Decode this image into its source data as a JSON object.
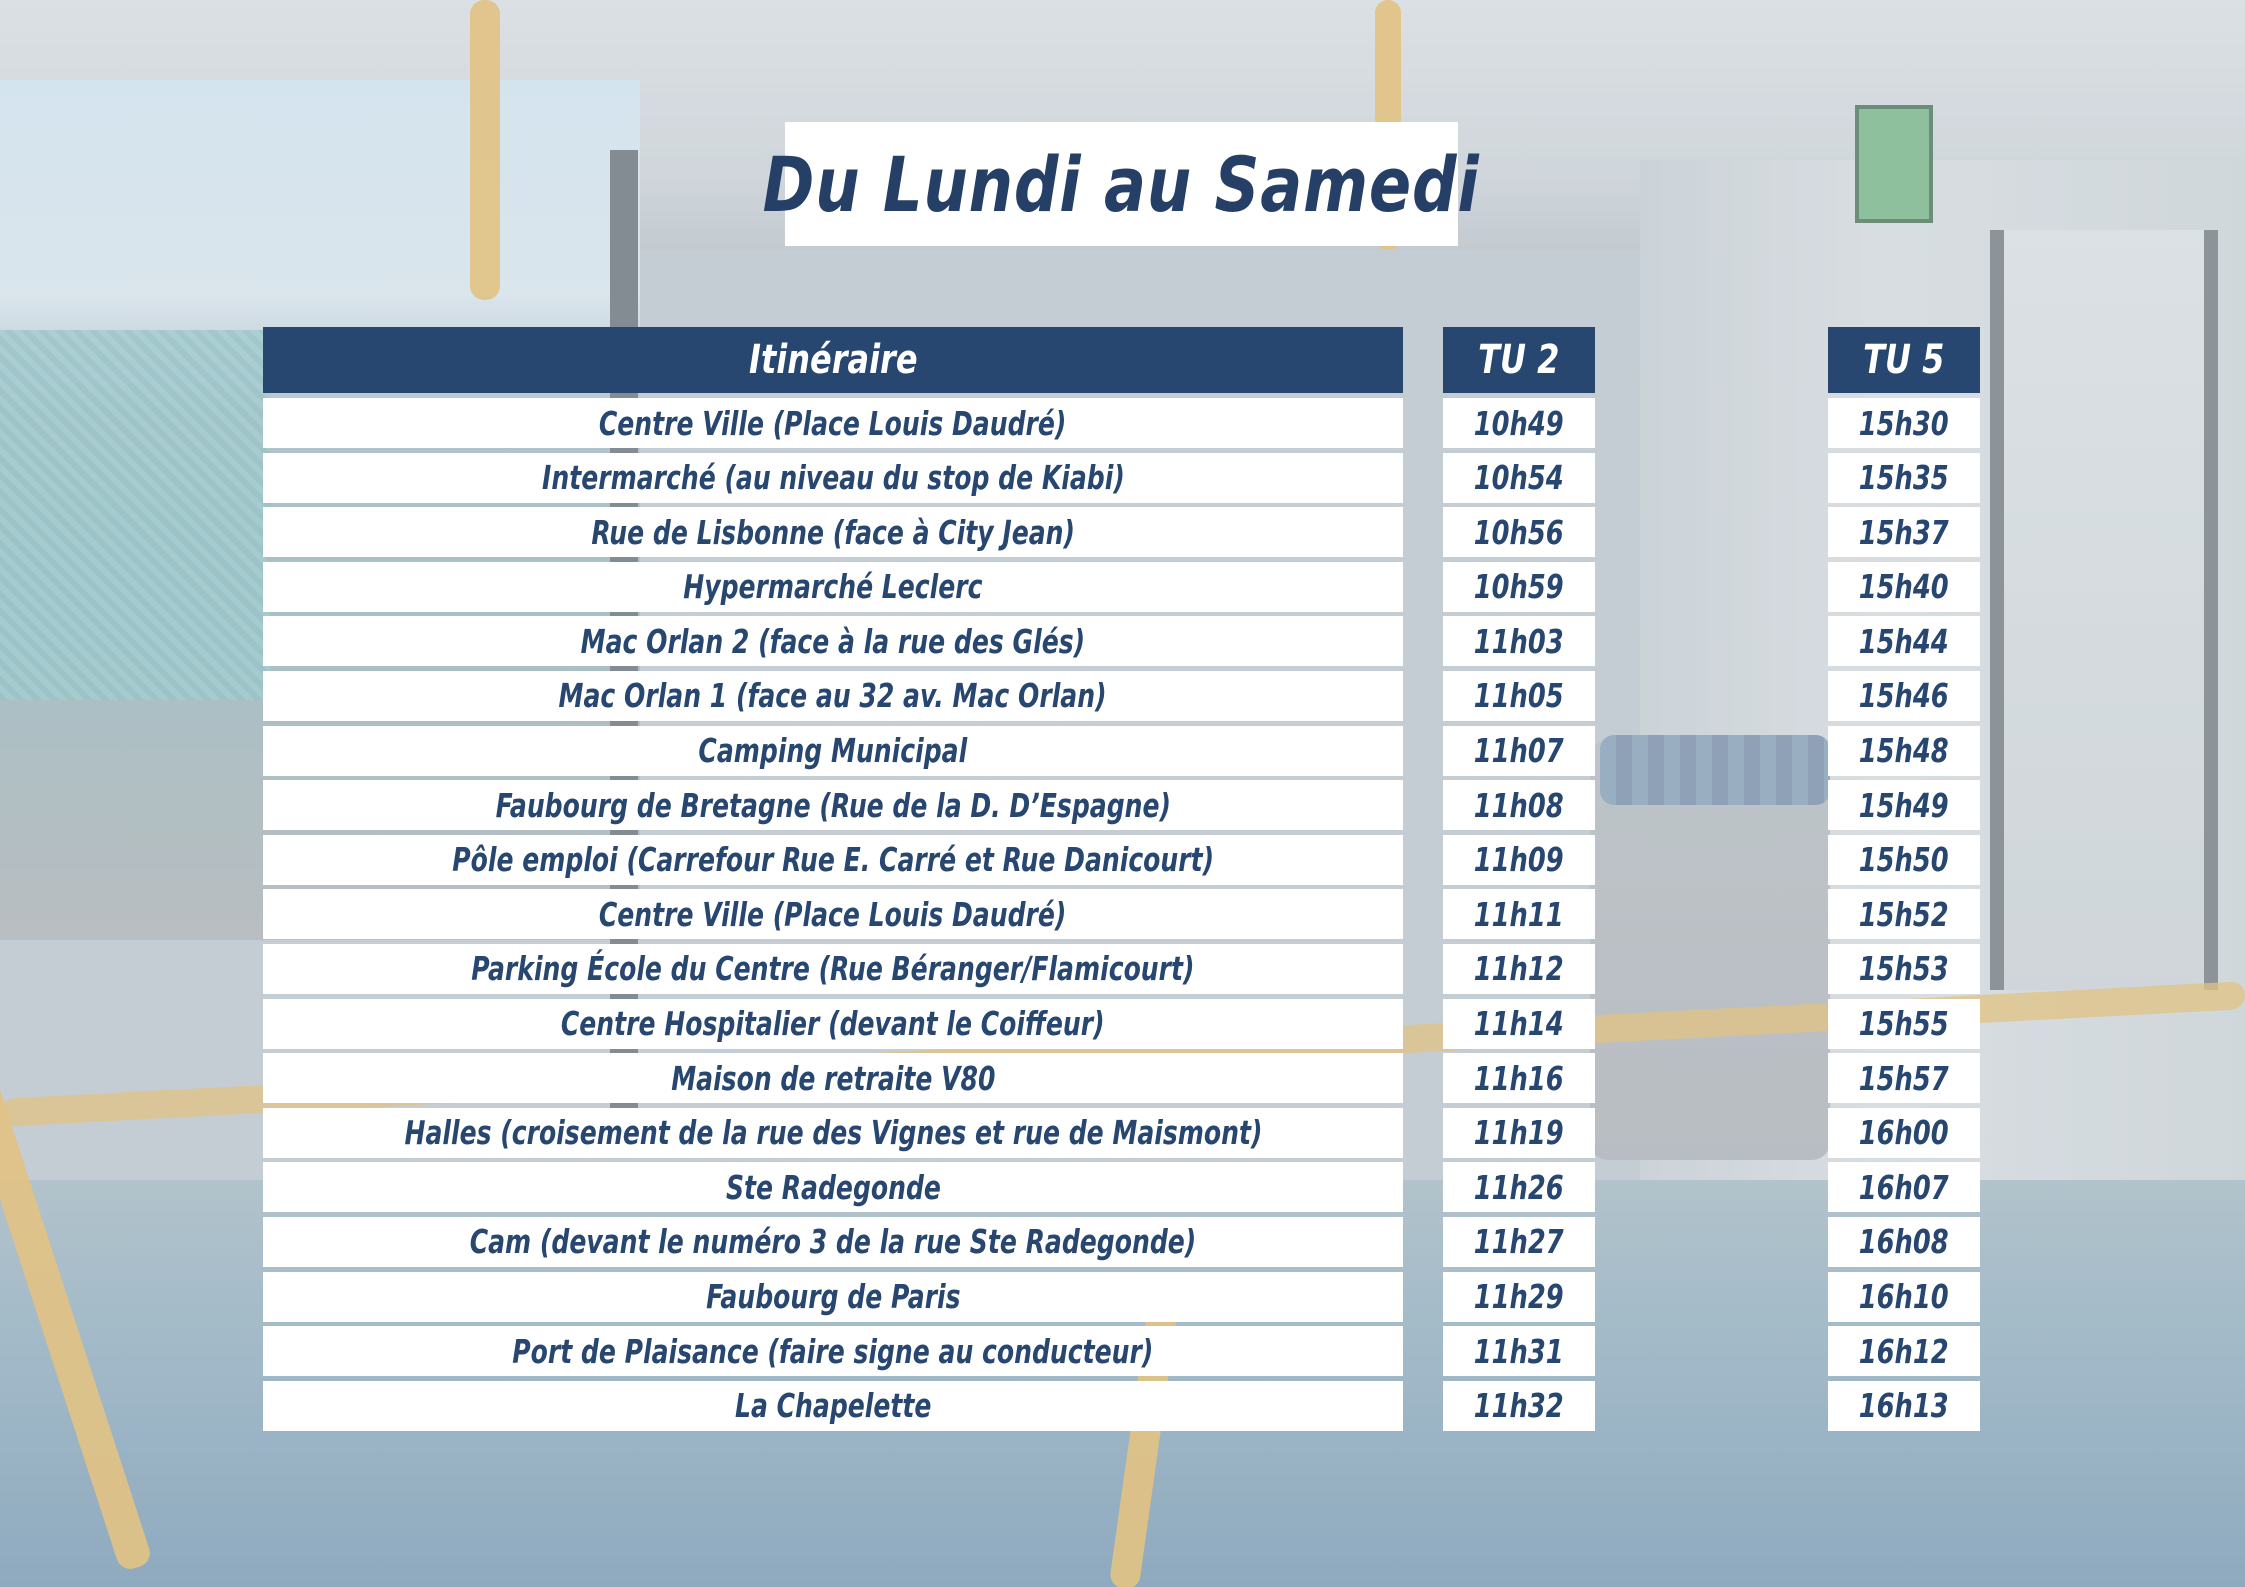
{
  "title": "Du Lundi au Samedi",
  "headers": {
    "itinerary": "Itinéraire",
    "tu2": "TU 2",
    "tu5": "TU 5"
  },
  "colors": {
    "header_bg": "#274670",
    "text": "#274670",
    "cell_bg": "#ffffff"
  },
  "rows": [
    {
      "stop": "Centre Ville (Place Louis Daudré)",
      "tu2": "10h49",
      "tu5": "15h30"
    },
    {
      "stop": "Intermarché (au niveau du stop de Kiabi)",
      "tu2": "10h54",
      "tu5": "15h35"
    },
    {
      "stop": "Rue de Lisbonne (face à City Jean)",
      "tu2": "10h56",
      "tu5": "15h37"
    },
    {
      "stop": "Hypermarché Leclerc",
      "tu2": "10h59",
      "tu5": "15h40"
    },
    {
      "stop": "Mac Orlan 2 (face à la rue des Glés)",
      "tu2": "11h03",
      "tu5": "15h44"
    },
    {
      "stop": "Mac Orlan 1 (face au 32 av. Mac Orlan)",
      "tu2": "11h05",
      "tu5": "15h46"
    },
    {
      "stop": "Camping Municipal",
      "tu2": "11h07",
      "tu5": "15h48"
    },
    {
      "stop": "Faubourg de Bretagne (Rue de la D. D’Espagne)",
      "tu2": "11h08",
      "tu5": "15h49"
    },
    {
      "stop": "Pôle emploi (Carrefour Rue E. Carré et Rue Danicourt)",
      "tu2": "11h09",
      "tu5": "15h50"
    },
    {
      "stop": "Centre Ville (Place Louis Daudré)",
      "tu2": "11h11",
      "tu5": "15h52"
    },
    {
      "stop": "Parking École du Centre (Rue Béranger/Flamicourt)",
      "tu2": "11h12",
      "tu5": "15h53"
    },
    {
      "stop": "Centre Hospitalier (devant le Coiffeur)",
      "tu2": "11h14",
      "tu5": "15h55"
    },
    {
      "stop": "Maison de retraite V80",
      "tu2": "11h16",
      "tu5": "15h57"
    },
    {
      "stop": "Halles (croisement de la rue des Vignes et rue de Maismont)",
      "tu2": "11h19",
      "tu5": "16h00"
    },
    {
      "stop": "Ste Radegonde",
      "tu2": "11h26",
      "tu5": "16h07"
    },
    {
      "stop": "Cam (devant le numéro 3 de la rue Ste Radegonde)",
      "tu2": "11h27",
      "tu5": "16h08"
    },
    {
      "stop": "Faubourg de Paris",
      "tu2": "11h29",
      "tu5": "16h10"
    },
    {
      "stop": "Port de Plaisance (faire signe au conducteur)",
      "tu2": "11h31",
      "tu5": "16h12"
    },
    {
      "stop": "La Chapelette",
      "tu2": "11h32",
      "tu5": "16h13"
    }
  ]
}
